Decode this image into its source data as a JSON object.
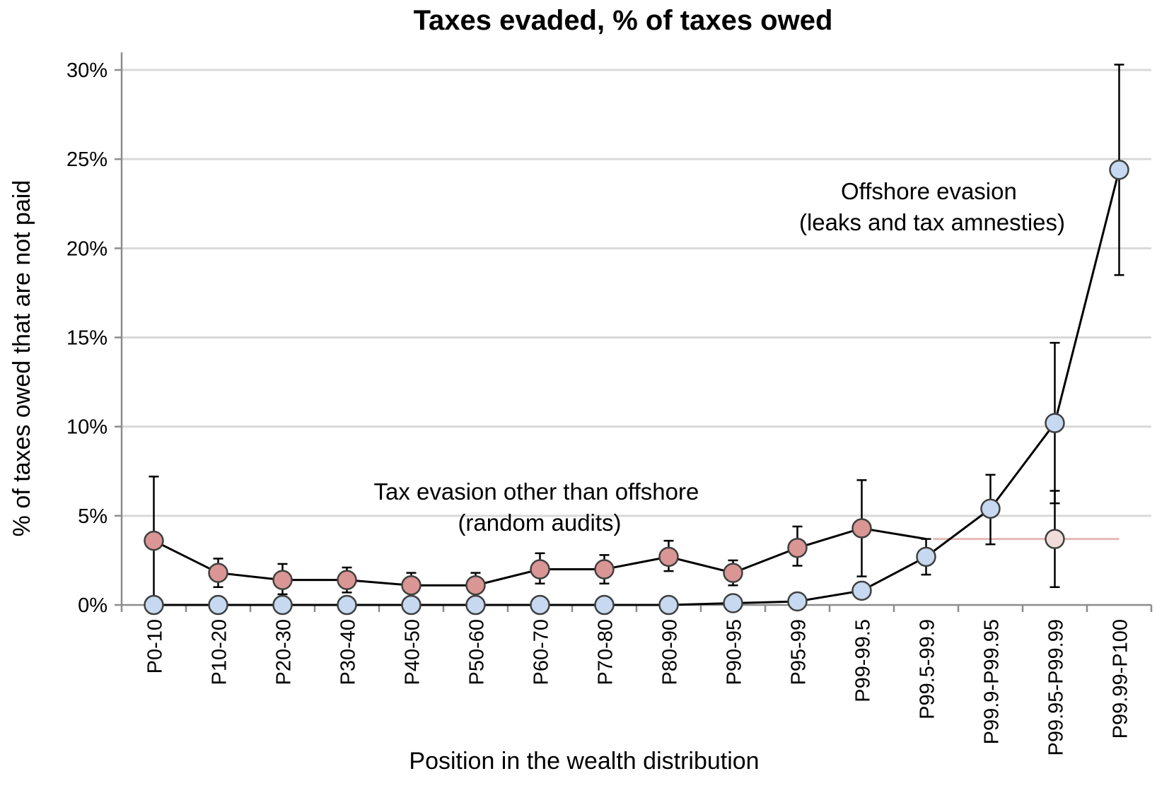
{
  "chart_data": {
    "type": "line",
    "title": "Taxes evaded, % of taxes owed",
    "xlabel": "Position in the wealth distribution",
    "ylabel": "% of taxes owed that are not paid",
    "ylim": [
      0,
      30
    ],
    "yticks": [
      "0%",
      "5%",
      "10%",
      "15%",
      "20%",
      "25%",
      "30%"
    ],
    "grid": true,
    "categories": [
      "P0-10",
      "P10-20",
      "P20-30",
      "P30-40",
      "P40-50",
      "P50-60",
      "P60-70",
      "P70-80",
      "P80-90",
      "P90-95",
      "P95-99",
      "P99-99.5",
      "P99.5-99.9",
      "P99.9-P99.95",
      "P99.95-P99.99",
      "P99.99-P100"
    ],
    "series": [
      {
        "key": "other",
        "color": "#d99694",
        "values": [
          3.6,
          1.8,
          1.4,
          1.4,
          1.1,
          1.1,
          2.0,
          2.0,
          2.7,
          1.8,
          3.2,
          4.3,
          3.7,
          3.7,
          3.7,
          3.7
        ],
        "err_low": [
          0.0,
          1.0,
          0.6,
          0.7,
          0.4,
          0.4,
          1.2,
          1.2,
          1.9,
          1.1,
          2.2,
          1.6,
          null,
          null,
          1.0,
          null
        ],
        "err_high": [
          7.2,
          2.6,
          2.3,
          2.1,
          1.8,
          1.8,
          2.9,
          2.8,
          3.6,
          2.5,
          4.4,
          7.0,
          null,
          null,
          6.4,
          null
        ],
        "markers_shown": 12,
        "extrapolated_index": 14,
        "extrapolated_color": "#f2dcdb",
        "extrapolated_line_color": "#e6b9b8"
      },
      {
        "key": "offshore",
        "color": "#c6d9f0",
        "values": [
          0.0,
          0.0,
          0.0,
          0.0,
          0.0,
          0.0,
          0.0,
          0.0,
          0.0,
          0.1,
          0.2,
          0.8,
          2.7,
          5.4,
          10.2,
          24.4
        ],
        "err_low": [
          null,
          null,
          null,
          null,
          null,
          null,
          null,
          null,
          null,
          null,
          null,
          null,
          1.7,
          3.4,
          5.7,
          18.5
        ],
        "err_high": [
          null,
          null,
          null,
          null,
          null,
          null,
          null,
          null,
          null,
          null,
          null,
          null,
          3.7,
          7.3,
          14.7,
          30.3
        ]
      }
    ],
    "annotations": [
      {
        "key": "offshore",
        "lines": [
          "Offshore evasion",
          "(leaks and tax amnesties)"
        ]
      },
      {
        "key": "other",
        "lines": [
          "Tax evasion other than offshore",
          "(random audits)"
        ]
      }
    ]
  }
}
